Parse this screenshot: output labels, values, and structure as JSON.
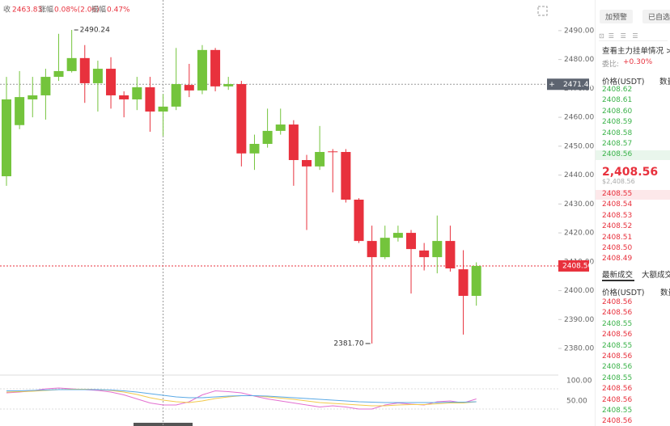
{
  "chart_data": {
    "type": "candlestick",
    "header": {
      "close_label": "收",
      "close_value": "2463.83",
      "change_label": "涨幅",
      "change_value": "0.08%(2.06)",
      "amplitude_label": "振幅",
      "amplitude_value": "0.47%"
    },
    "up_color": "#74c43c",
    "down_color": "#e8313d",
    "ylim": [
      2371.9,
      2500.6
    ],
    "yticks": [
      {
        "value": 2380,
        "label": "2380.00"
      },
      {
        "value": 2390,
        "label": "2390.00"
      },
      {
        "value": 2400,
        "label": "2400.00"
      },
      {
        "value": 2410,
        "label": "2410.00"
      },
      {
        "value": 2420,
        "label": "2420.00"
      },
      {
        "value": 2430,
        "label": "2430.00"
      },
      {
        "value": 2440,
        "label": "2440.00"
      },
      {
        "value": 2450,
        "label": "2450.00"
      },
      {
        "value": 2460,
        "label": "2460.00"
      },
      {
        "value": 2470,
        "label": "2470.00"
      },
      {
        "value": 2480,
        "label": "2480.00"
      },
      {
        "value": 2490,
        "label": "2490.00"
      }
    ],
    "open": [
      2439.6,
      2457.3,
      2466.2,
      2467.6,
      2474.0,
      2476.0,
      2480.5,
      2471.8,
      2476.8,
      2467.6,
      2466.2,
      2470.4,
      2462.0,
      2463.7,
      2471.2,
      2469.3,
      2483.3,
      2470.7,
      2471.5,
      2447.5,
      2450.8,
      2455.3,
      2457.5,
      2445.2,
      2443.0,
      2448.2,
      2448.0,
      2431.5,
      2417.2,
      2411.6,
      2418.3,
      2420.0,
      2413.9,
      2411.6,
      2417.2,
      2407.4,
      2398.2
    ],
    "close": [
      2466.2,
      2467.0,
      2467.6,
      2474.0,
      2476.0,
      2480.5,
      2471.8,
      2476.8,
      2467.6,
      2466.2,
      2470.4,
      2462.0,
      2463.7,
      2471.5,
      2469.3,
      2483.3,
      2470.7,
      2471.5,
      2447.5,
      2450.8,
      2455.3,
      2457.5,
      2445.2,
      2443.0,
      2448.0,
      2448.0,
      2431.5,
      2417.2,
      2411.6,
      2418.3,
      2420.0,
      2414.4,
      2411.6,
      2417.2,
      2407.7,
      2398.2,
      2408.56
    ],
    "high": [
      2474.0,
      2476.0,
      2474.0,
      2476.8,
      2488.9,
      2490.24,
      2485.0,
      2479.6,
      2480.8,
      2469.0,
      2474.0,
      2474.0,
      2468.0,
      2484.0,
      2478.5,
      2485.0,
      2484.0,
      2474.0,
      2472.6,
      2454.0,
      2463.0,
      2463.0,
      2459.0,
      2447.0,
      2457.0,
      2449.0,
      2449.0,
      2432.0,
      2422.5,
      2422.5,
      2422.5,
      2421.0,
      2416.5,
      2426.0,
      2422.5,
      2414.0,
      2409.8
    ],
    "low": [
      2436.3,
      2455.9,
      2460.0,
      2459.2,
      2472.6,
      2475.5,
      2465.0,
      2462.0,
      2463.0,
      2460.0,
      2462.5,
      2455.0,
      2453.5,
      2462.5,
      2467.0,
      2468.0,
      2469.0,
      2469.5,
      2443.0,
      2441.8,
      2449.5,
      2454.0,
      2436.3,
      2421.0,
      2441.8,
      2434.0,
      2430.5,
      2416.5,
      2381.7,
      2410.9,
      2417.0,
      2399.0,
      2407.0,
      2406.0,
      2406.6,
      2384.8,
      2394.8
    ],
    "annotations": [
      {
        "text": "2490.24",
        "index": 5,
        "value": 2490.24
      },
      {
        "text": "2381.70",
        "index": 28,
        "value": 2381.7
      }
    ],
    "crosshair": {
      "index": 12,
      "value": 2471.43,
      "label": "2471.43"
    },
    "last_price": {
      "value": 2408.56,
      "label": "2408.56"
    },
    "indicator": {
      "ylim": [
        -12,
        112
      ],
      "yticks": [
        {
          "value": 50,
          "label": "50.00"
        },
        {
          "value": 100,
          "label": "100.00"
        }
      ],
      "series": [
        {
          "color": "#e36fd0",
          "values": [
            70,
            72,
            75,
            80,
            82,
            80,
            78,
            76,
            72,
            65,
            55,
            45,
            40,
            40,
            48,
            65,
            75,
            73,
            70,
            62,
            55,
            50,
            45,
            40,
            35,
            38,
            35,
            30,
            30,
            40,
            45,
            42,
            40,
            48,
            50,
            45,
            55
          ]
        },
        {
          "color": "#f2c94c",
          "values": [
            72,
            73,
            74,
            76,
            78,
            79,
            79,
            78,
            76,
            72,
            66,
            58,
            52,
            48,
            46,
            50,
            56,
            60,
            63,
            63,
            60,
            57,
            54,
            50,
            46,
            44,
            42,
            40,
            38,
            38,
            40,
            41,
            41,
            43,
            45,
            45,
            48
          ]
        },
        {
          "color": "#5aa9e6",
          "values": [
            75,
            75,
            76,
            77,
            78,
            78,
            78,
            78,
            77,
            75,
            72,
            68,
            64,
            60,
            58,
            58,
            60,
            62,
            63,
            63,
            62,
            60,
            58,
            56,
            54,
            52,
            50,
            48,
            47,
            46,
            46,
            46,
            46,
            46,
            47,
            47,
            48
          ]
        }
      ]
    }
  },
  "panel": {
    "alert_button": "加预警",
    "watch_button": "已自选",
    "orders_link": "查看主力挂单情况 >",
    "ratio_label": "委比:",
    "ratio_value": "+0.30%",
    "book_header": [
      "价格(USDT)",
      "数量"
    ],
    "asks": [
      "2408.62",
      "2408.61",
      "2408.60",
      "2408.59",
      "2408.58",
      "2408.57",
      "2408.56"
    ],
    "last_price": "2,408.56",
    "last_price_usd": "$2,408.56",
    "bids": [
      "2408.55",
      "2408.54",
      "2408.53",
      "2408.52",
      "2408.51",
      "2408.50",
      "2408.49"
    ],
    "tabs": [
      "最新成交",
      "大额成交"
    ],
    "trades_header": [
      "价格(USDT)",
      "数量"
    ],
    "trades": [
      {
        "price": "2408.56",
        "color": "#e8313d"
      },
      {
        "price": "2408.56",
        "color": "#e8313d"
      },
      {
        "price": "2408.55",
        "color": "#3bb34a"
      },
      {
        "price": "2408.56",
        "color": "#e8313d"
      },
      {
        "price": "2408.55",
        "color": "#3bb34a"
      },
      {
        "price": "2408.56",
        "color": "#e8313d"
      },
      {
        "price": "2408.56",
        "color": "#3bb34a"
      },
      {
        "price": "2408.55",
        "color": "#3bb34a"
      },
      {
        "price": "2408.56",
        "color": "#e8313d"
      },
      {
        "price": "2408.56",
        "color": "#e8313d"
      },
      {
        "price": "2408.55",
        "color": "#3bb34a"
      },
      {
        "price": "2408.56",
        "color": "#e8313d"
      }
    ]
  }
}
